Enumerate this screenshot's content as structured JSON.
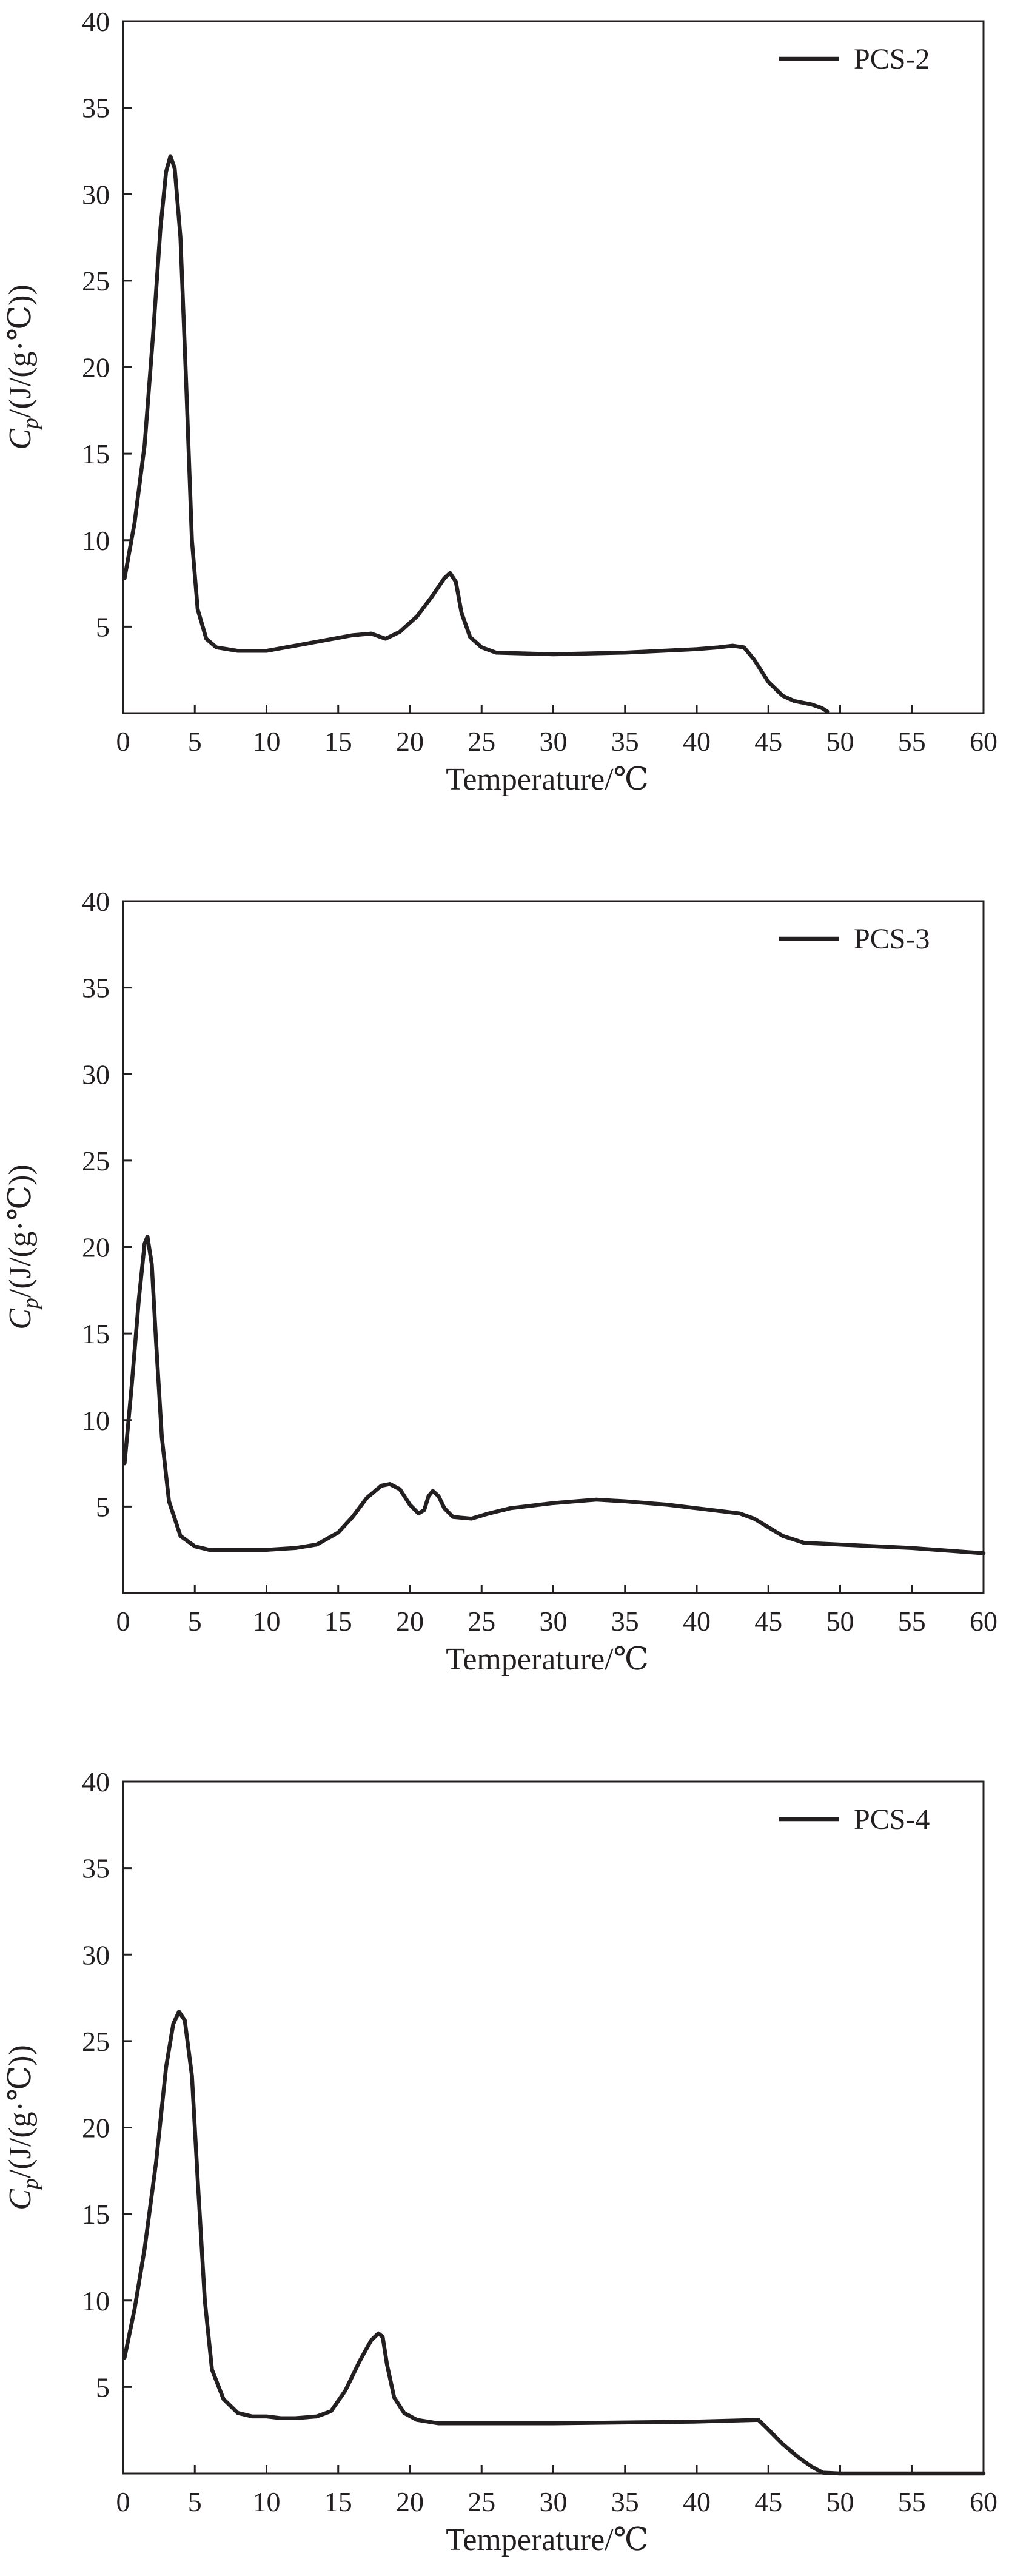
{
  "chart_data": [
    {
      "type": "line",
      "xlabel": "Temperature/℃",
      "ylabel": "C_p/(J/(g·℃))",
      "ylabel_parts": {
        "symbol": "C",
        "subscript": "p",
        "unit": "/(J/(g·℃))"
      },
      "xlim": [
        0,
        60
      ],
      "ylim": [
        0,
        40
      ],
      "xticks": [
        "0",
        "5",
        "10",
        "15",
        "20",
        "25",
        "30",
        "35",
        "40",
        "45",
        "50",
        "55",
        "60"
      ],
      "yticks": [
        "5",
        "10",
        "15",
        "20",
        "25",
        "30",
        "35",
        "40"
      ],
      "grid": false,
      "legend_position": "top-right",
      "series": [
        {
          "name": "PCS-2",
          "color": "#231f20",
          "points": [
            [
              0.1,
              7.8
            ],
            [
              0.8,
              11
            ],
            [
              1.5,
              15.5
            ],
            [
              2.1,
              22
            ],
            [
              2.6,
              28
            ],
            [
              3.0,
              31.3
            ],
            [
              3.3,
              32.2
            ],
            [
              3.6,
              31.5
            ],
            [
              4.0,
              27.5
            ],
            [
              4.4,
              19
            ],
            [
              4.8,
              10
            ],
            [
              5.2,
              6
            ],
            [
              5.8,
              4.3
            ],
            [
              6.5,
              3.8
            ],
            [
              8,
              3.6
            ],
            [
              10,
              3.6
            ],
            [
              12,
              3.9
            ],
            [
              14,
              4.2
            ],
            [
              16,
              4.5
            ],
            [
              17.3,
              4.6
            ],
            [
              18.3,
              4.3
            ],
            [
              19.3,
              4.7
            ],
            [
              20.5,
              5.6
            ],
            [
              21.5,
              6.7
            ],
            [
              22.4,
              7.8
            ],
            [
              22.8,
              8.1
            ],
            [
              23.2,
              7.6
            ],
            [
              23.6,
              5.8
            ],
            [
              24.2,
              4.4
            ],
            [
              25,
              3.8
            ],
            [
              26,
              3.5
            ],
            [
              30,
              3.4
            ],
            [
              35,
              3.5
            ],
            [
              40,
              3.7
            ],
            [
              41.5,
              3.8
            ],
            [
              42.5,
              3.9
            ],
            [
              43.3,
              3.8
            ],
            [
              44,
              3.1
            ],
            [
              45,
              1.8
            ],
            [
              46,
              1.0
            ],
            [
              46.8,
              0.7
            ],
            [
              48,
              0.5
            ],
            [
              48.7,
              0.3
            ],
            [
              49.1,
              0.1
            ]
          ]
        },
        {
          "name": "PCS-3",
          "color": "#231f20",
          "points": [
            [
              0.1,
              7.5
            ],
            [
              0.6,
              12
            ],
            [
              1.1,
              17
            ],
            [
              1.5,
              20.2
            ],
            [
              1.7,
              20.6
            ],
            [
              2.0,
              19
            ],
            [
              2.3,
              14.5
            ],
            [
              2.7,
              9
            ],
            [
              3.2,
              5.3
            ],
            [
              4,
              3.3
            ],
            [
              5,
              2.7
            ],
            [
              6,
              2.5
            ],
            [
              8,
              2.5
            ],
            [
              10,
              2.5
            ],
            [
              12,
              2.6
            ],
            [
              13.5,
              2.8
            ],
            [
              15,
              3.5
            ],
            [
              16,
              4.4
            ],
            [
              17,
              5.5
            ],
            [
              18,
              6.2
            ],
            [
              18.6,
              6.3
            ],
            [
              19.3,
              6.0
            ],
            [
              20,
              5.1
            ],
            [
              20.6,
              4.6
            ],
            [
              21,
              4.8
            ],
            [
              21.3,
              5.6
            ],
            [
              21.6,
              5.9
            ],
            [
              22,
              5.6
            ],
            [
              22.4,
              4.9
            ],
            [
              23,
              4.4
            ],
            [
              24.3,
              4.3
            ],
            [
              25.5,
              4.6
            ],
            [
              27,
              4.9
            ],
            [
              30,
              5.2
            ],
            [
              33,
              5.4
            ],
            [
              35,
              5.3
            ],
            [
              38,
              5.1
            ],
            [
              40,
              4.9
            ],
            [
              42,
              4.7
            ],
            [
              43,
              4.6
            ],
            [
              44,
              4.3
            ],
            [
              45,
              3.8
            ],
            [
              46,
              3.3
            ],
            [
              47.5,
              2.9
            ],
            [
              50,
              2.8
            ],
            [
              55,
              2.6
            ],
            [
              60,
              2.3
            ]
          ]
        },
        {
          "name": "PCS-4",
          "color": "#231f20",
          "points": [
            [
              0.1,
              6.7
            ],
            [
              0.8,
              9.5
            ],
            [
              1.5,
              13
            ],
            [
              2.3,
              18
            ],
            [
              3.0,
              23.5
            ],
            [
              3.5,
              26
            ],
            [
              3.9,
              26.7
            ],
            [
              4.3,
              26.2
            ],
            [
              4.8,
              23
            ],
            [
              5.2,
              17
            ],
            [
              5.7,
              10
            ],
            [
              6.2,
              6
            ],
            [
              7,
              4.3
            ],
            [
              8,
              3.5
            ],
            [
              9,
              3.3
            ],
            [
              10,
              3.3
            ],
            [
              11,
              3.2
            ],
            [
              12,
              3.2
            ],
            [
              13.5,
              3.3
            ],
            [
              14.5,
              3.6
            ],
            [
              15.5,
              4.8
            ],
            [
              16.5,
              6.5
            ],
            [
              17.3,
              7.7
            ],
            [
              17.8,
              8.1
            ],
            [
              18.1,
              7.9
            ],
            [
              18.4,
              6.3
            ],
            [
              18.9,
              4.4
            ],
            [
              19.6,
              3.5
            ],
            [
              20.5,
              3.1
            ],
            [
              22,
              2.9
            ],
            [
              30,
              2.9
            ],
            [
              40,
              3.0
            ],
            [
              44.3,
              3.1
            ],
            [
              44.8,
              2.7
            ],
            [
              46,
              1.7
            ],
            [
              47,
              1.0
            ],
            [
              48,
              0.4
            ],
            [
              48.8,
              0.05
            ],
            [
              50,
              0
            ],
            [
              60,
              0
            ]
          ]
        }
      ]
    }
  ]
}
